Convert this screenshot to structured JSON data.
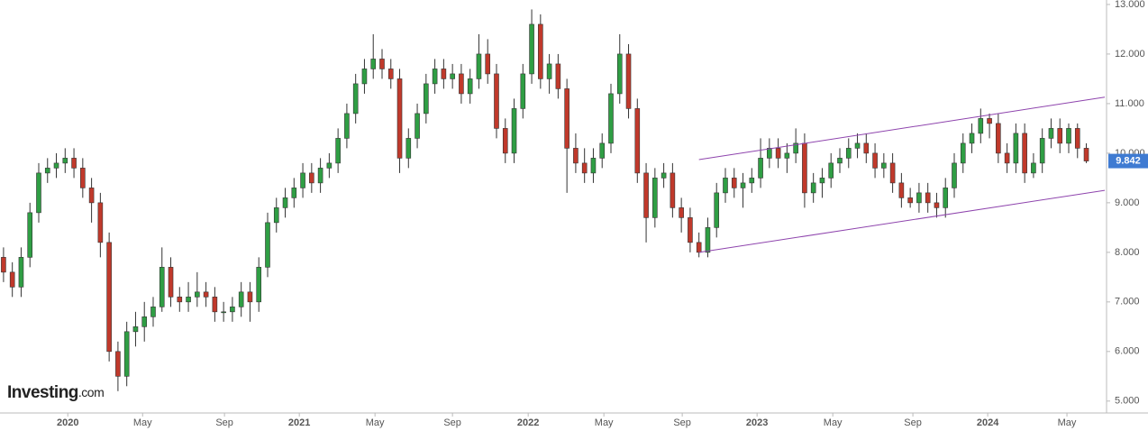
{
  "chart_data": {
    "type": "candlestick",
    "open": [
      7.9,
      7.6,
      7.3,
      7.9,
      8.8,
      9.6,
      9.7,
      9.8,
      9.9,
      9.7,
      9.3,
      9.0,
      8.2,
      6.0,
      5.5,
      6.4,
      6.5,
      6.7,
      6.9,
      7.7,
      7.1,
      7.0,
      7.1,
      7.2,
      7.1,
      6.8,
      6.8,
      6.9,
      7.2,
      7.0,
      7.7,
      8.6,
      8.9,
      9.1,
      9.3,
      9.6,
      9.4,
      9.7,
      9.8,
      10.3,
      10.8,
      11.4,
      11.7,
      11.9,
      11.7,
      11.5,
      9.9,
      10.3,
      10.8,
      11.4,
      11.7,
      11.5,
      11.6,
      11.2,
      11.5,
      12.0,
      11.6,
      10.5,
      10.0,
      10.9,
      11.6,
      12.6,
      11.5,
      11.8,
      11.3,
      10.1,
      9.8,
      9.6,
      9.9,
      10.2,
      11.2,
      12.0,
      10.9,
      9.6,
      8.7,
      9.5,
      9.6,
      8.9,
      8.7,
      8.2,
      8.0,
      8.5,
      9.2,
      9.5,
      9.3,
      9.4,
      9.5,
      9.9,
      10.1,
      9.9,
      10.0,
      10.2,
      9.2,
      9.4,
      9.5,
      9.8,
      9.9,
      10.1,
      10.2,
      10.0,
      9.7,
      9.8,
      9.4,
      9.1,
      9.0,
      9.2,
      9.0,
      8.9,
      9.3,
      9.8,
      10.2,
      10.4,
      10.7,
      10.6,
      10.0,
      9.8,
      10.4,
      9.6,
      9.8,
      10.3,
      10.5,
      10.2,
      10.5,
      10.1
    ],
    "high": [
      8.1,
      7.8,
      8.1,
      9.0,
      9.8,
      9.9,
      10.0,
      10.1,
      10.1,
      9.9,
      9.5,
      9.2,
      8.4,
      6.2,
      6.6,
      6.8,
      7.0,
      7.1,
      8.1,
      7.9,
      7.3,
      7.4,
      7.6,
      7.4,
      7.3,
      7.0,
      7.1,
      7.4,
      7.4,
      7.9,
      8.8,
      9.1,
      9.3,
      9.5,
      9.8,
      9.8,
      9.9,
      10.0,
      10.5,
      11.0,
      11.6,
      11.9,
      12.4,
      12.1,
      11.9,
      11.7,
      10.5,
      11.0,
      11.6,
      11.9,
      11.9,
      11.8,
      11.8,
      11.7,
      12.4,
      12.3,
      11.8,
      10.7,
      11.1,
      11.8,
      12.9,
      12.8,
      12.0,
      12.0,
      11.5,
      10.4,
      10.1,
      10.1,
      10.4,
      11.4,
      12.4,
      12.2,
      11.1,
      9.8,
      9.7,
      9.8,
      9.8,
      9.1,
      8.9,
      8.4,
      8.7,
      9.4,
      9.7,
      9.7,
      9.6,
      9.7,
      10.3,
      10.3,
      10.3,
      10.2,
      10.5,
      10.4,
      9.6,
      9.7,
      10.0,
      10.1,
      10.3,
      10.4,
      10.4,
      10.2,
      10.0,
      10.0,
      9.6,
      9.3,
      9.4,
      9.4,
      9.2,
      9.5,
      10.0,
      10.4,
      10.6,
      10.9,
      10.8,
      10.8,
      10.2,
      10.6,
      10.6,
      10.0,
      10.5,
      10.7,
      10.7,
      10.6,
      10.6,
      10.2
    ],
    "low": [
      7.4,
      7.1,
      7.1,
      7.7,
      8.6,
      9.4,
      9.5,
      9.6,
      9.5,
      9.1,
      8.6,
      7.9,
      5.8,
      5.2,
      5.3,
      6.1,
      6.2,
      6.5,
      6.8,
      6.9,
      6.8,
      6.8,
      6.9,
      6.9,
      6.6,
      6.6,
      6.6,
      6.7,
      6.6,
      6.8,
      7.5,
      8.4,
      8.7,
      8.9,
      9.1,
      9.2,
      9.2,
      9.5,
      9.6,
      10.1,
      10.6,
      11.2,
      11.5,
      11.5,
      11.3,
      9.6,
      9.7,
      10.1,
      10.6,
      11.2,
      11.3,
      11.3,
      11.0,
      11.0,
      11.3,
      11.4,
      10.3,
      9.8,
      9.8,
      10.7,
      11.4,
      11.3,
      11.2,
      11.1,
      9.2,
      9.6,
      9.4,
      9.4,
      9.7,
      10.0,
      11.0,
      10.7,
      9.4,
      8.2,
      8.5,
      9.3,
      8.7,
      8.4,
      8.0,
      7.9,
      7.9,
      8.3,
      9.0,
      9.1,
      8.9,
      9.2,
      9.3,
      9.7,
      9.7,
      9.6,
      9.8,
      8.9,
      9.0,
      9.1,
      9.3,
      9.6,
      9.7,
      9.9,
      9.8,
      9.5,
      9.5,
      9.2,
      8.9,
      8.9,
      8.8,
      8.8,
      8.7,
      8.7,
      9.1,
      9.6,
      10.0,
      10.2,
      10.3,
      9.8,
      9.6,
      9.6,
      9.4,
      9.5,
      9.6,
      10.1,
      10.0,
      10.0,
      9.9,
      9.8
    ],
    "close": [
      7.6,
      7.3,
      7.9,
      8.8,
      9.6,
      9.7,
      9.8,
      9.9,
      9.7,
      9.3,
      9.0,
      8.2,
      6.0,
      5.5,
      6.4,
      6.5,
      6.7,
      6.9,
      7.7,
      7.1,
      7.0,
      7.1,
      7.2,
      7.1,
      6.8,
      6.8,
      6.9,
      7.2,
      7.0,
      7.7,
      8.6,
      8.9,
      9.1,
      9.3,
      9.6,
      9.4,
      9.7,
      9.8,
      10.3,
      10.8,
      11.4,
      11.7,
      11.9,
      11.7,
      11.5,
      9.9,
      10.3,
      10.8,
      11.4,
      11.7,
      11.5,
      11.6,
      11.2,
      11.5,
      12.0,
      11.6,
      10.5,
      10.0,
      10.9,
      11.6,
      12.6,
      11.5,
      11.8,
      11.3,
      10.1,
      9.8,
      9.6,
      9.9,
      10.2,
      11.2,
      12.0,
      10.9,
      9.6,
      8.7,
      9.5,
      9.6,
      8.9,
      8.7,
      8.2,
      8.0,
      8.5,
      9.2,
      9.5,
      9.3,
      9.4,
      9.5,
      9.9,
      10.1,
      9.9,
      10.0,
      10.2,
      9.2,
      9.4,
      9.5,
      9.8,
      9.9,
      10.1,
      10.2,
      10.0,
      9.7,
      9.8,
      9.4,
      9.1,
      9.0,
      9.2,
      9.0,
      8.9,
      9.3,
      9.8,
      10.2,
      10.4,
      10.7,
      10.6,
      10.0,
      9.8,
      10.4,
      9.6,
      9.8,
      10.3,
      10.5,
      10.2,
      10.5,
      10.1,
      9.842
    ],
    "up_color": "#2f9e44",
    "down_color": "#c0392b",
    "xlim": [
      -0.4,
      125.3
    ],
    "xticks": [
      {
        "value": 7.3,
        "label": "2020"
      },
      {
        "value": 15.8,
        "label": "May"
      },
      {
        "value": 25.1,
        "label": "Sep"
      },
      {
        "value": 33.6,
        "label": "2021"
      },
      {
        "value": 42.2,
        "label": "May"
      },
      {
        "value": 51.0,
        "label": "Sep"
      },
      {
        "value": 59.6,
        "label": "2022"
      },
      {
        "value": 68.2,
        "label": "May"
      },
      {
        "value": 77.1,
        "label": "Sep"
      },
      {
        "value": 85.6,
        "label": "2023"
      },
      {
        "value": 94.2,
        "label": "May"
      },
      {
        "value": 103.3,
        "label": "Sep"
      },
      {
        "value": 111.8,
        "label": "2024"
      },
      {
        "value": 120.8,
        "label": "May"
      }
    ],
    "ylim": [
      4.76,
      13.09
    ],
    "yticks": [
      {
        "value": 5,
        "label": "5.000"
      },
      {
        "value": 6,
        "label": "6.000"
      },
      {
        "value": 7,
        "label": "7.000"
      },
      {
        "value": 8,
        "label": "8.000"
      },
      {
        "value": 9,
        "label": "9.000"
      },
      {
        "value": 10,
        "label": "10.000"
      },
      {
        "value": 11,
        "label": "11.000"
      },
      {
        "value": 12,
        "label": "12.000"
      },
      {
        "value": 13,
        "label": "13.000"
      }
    ],
    "trendlines": [
      {
        "x": [
          79.0,
          125.1
        ],
        "y": [
          9.87,
          11.13
        ]
      },
      {
        "x": [
          79.0,
          125.1
        ],
        "y": [
          8.0,
          9.25
        ]
      }
    ],
    "trendline_color": "#8e44ad",
    "last_price": 9.842,
    "last_price_color": "#3f7bd2",
    "brand": "Investing",
    "brand_suffix": ".com"
  }
}
